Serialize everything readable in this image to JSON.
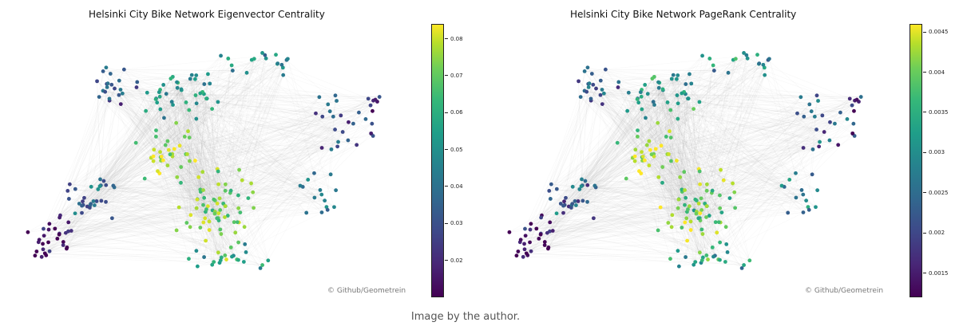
{
  "caption": "Image by the author.",
  "chart_data": [
    {
      "type": "scatter",
      "title": "Helsinki City Bike Network Eigenvector Centrality",
      "colormap": "viridis",
      "colorbar": {
        "min": 0.01,
        "max": 0.084,
        "ticks": [
          0.02,
          0.03,
          0.04,
          0.05,
          0.06,
          0.07,
          0.08
        ]
      },
      "credit": "© Github/Geometrein",
      "edge_color": "#9a9a9a"
    },
    {
      "type": "scatter",
      "title": "Helsinki City Bike Network PageRank Centrality",
      "colormap": "viridis",
      "colorbar": {
        "min": 0.0012,
        "max": 0.0046,
        "ticks": [
          0.0015,
          0.002,
          0.0025,
          0.003,
          0.0035,
          0.004,
          0.0045
        ]
      },
      "credit": "© Github/Geometrein",
      "edge_color": "#9a9a9a"
    }
  ]
}
